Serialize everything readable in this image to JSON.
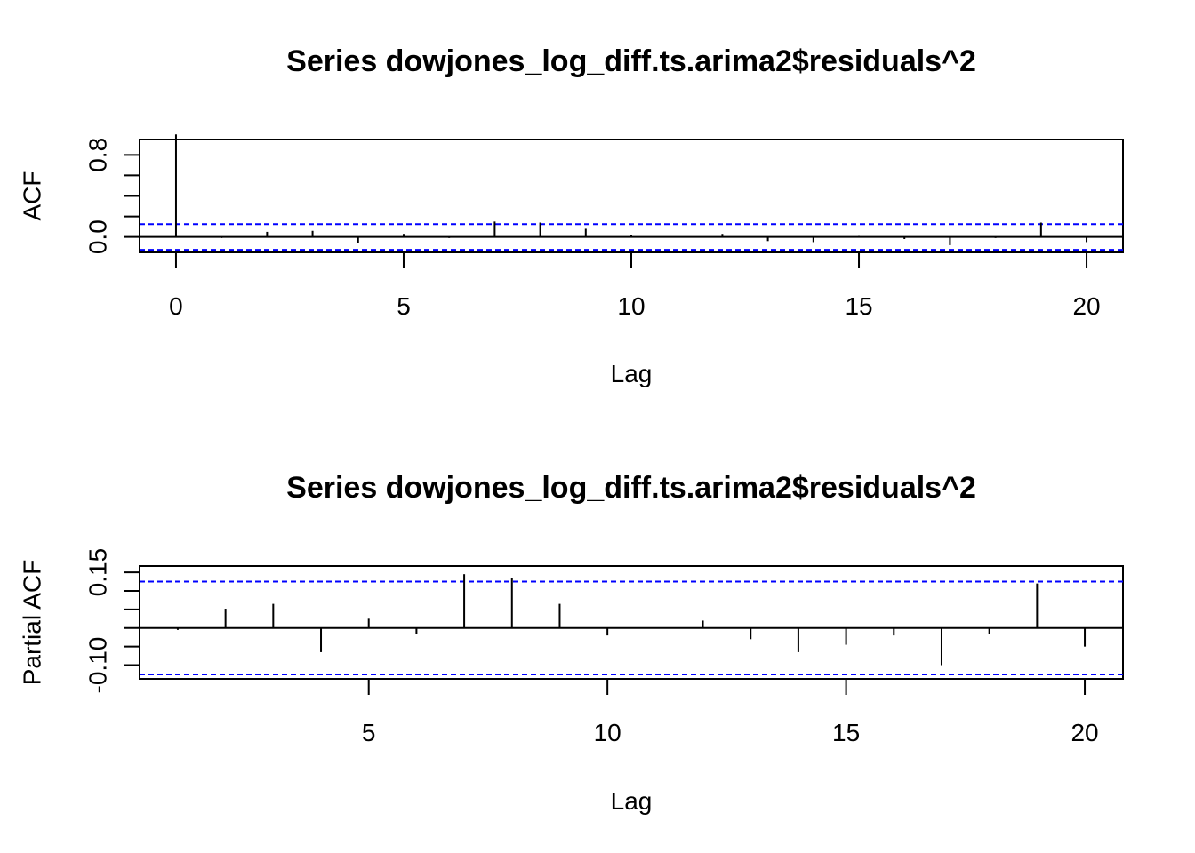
{
  "colors": {
    "confidence_band": "#0000ff",
    "bars": "#000000",
    "axes": "#000000"
  },
  "chart_data": [
    {
      "type": "bar",
      "title": "Series  dowjones_log_diff.ts.arima2$residuals^2",
      "xlabel": "Lag",
      "ylabel": "ACF",
      "xlim": [
        -0.8,
        20.8
      ],
      "ylim": [
        -0.15,
        0.95
      ],
      "x_ticks": [
        0,
        5,
        10,
        15,
        20
      ],
      "y_ticks": [
        0.0,
        0.8
      ],
      "y_tick_labels": [
        "0.0",
        "0.8"
      ],
      "y_minor_ticks": [
        0.0,
        0.2,
        0.4,
        0.6,
        0.8
      ],
      "confidence_bound": 0.125,
      "lags": [
        0,
        1,
        2,
        3,
        4,
        5,
        6,
        7,
        8,
        9,
        10,
        11,
        12,
        13,
        14,
        15,
        16,
        17,
        18,
        19,
        20
      ],
      "values": [
        1.0,
        -0.01,
        0.05,
        0.06,
        -0.06,
        0.03,
        -0.01,
        0.15,
        0.14,
        0.08,
        0.02,
        0.0,
        0.03,
        -0.04,
        -0.05,
        0.01,
        -0.02,
        -0.08,
        -0.01,
        0.14,
        -0.05
      ]
    },
    {
      "type": "bar",
      "title": "Series  dowjones_log_diff.ts.arima2$residuals^2",
      "xlabel": "Lag",
      "ylabel": "Partial ACF",
      "xlim": [
        0.2,
        20.8
      ],
      "ylim": [
        -0.137,
        0.167
      ],
      "x_ticks": [
        5,
        10,
        15,
        20
      ],
      "y_ticks": [
        -0.1,
        0.15
      ],
      "y_tick_labels": [
        "-0.10",
        "0.15"
      ],
      "y_minor_ticks": [
        -0.1,
        -0.05,
        0.0,
        0.05,
        0.1,
        0.15
      ],
      "confidence_bound": 0.125,
      "lags": [
        1,
        2,
        3,
        4,
        5,
        6,
        7,
        8,
        9,
        10,
        11,
        12,
        13,
        14,
        15,
        16,
        17,
        18,
        19,
        20
      ],
      "values": [
        -0.005,
        0.052,
        0.065,
        -0.065,
        0.025,
        -0.015,
        0.145,
        0.135,
        0.065,
        -0.02,
        0.0,
        0.02,
        -0.03,
        -0.065,
        -0.045,
        -0.02,
        -0.1,
        -0.015,
        0.12,
        -0.05
      ]
    }
  ]
}
